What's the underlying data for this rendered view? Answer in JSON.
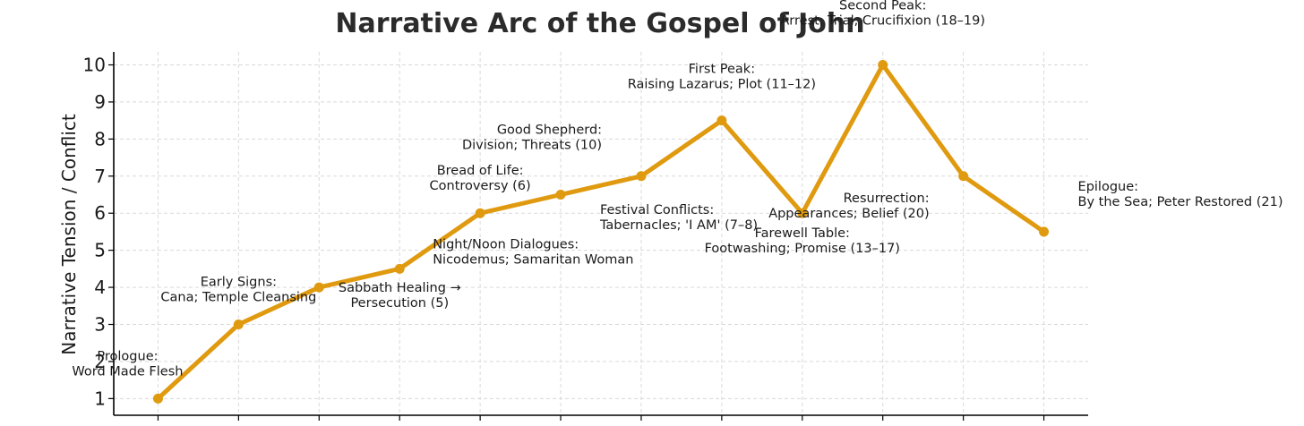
{
  "colors": {
    "line": "#E09A10",
    "grid": "#d9d9d9",
    "text": "#1a1a1a"
  },
  "chart_data": {
    "type": "line",
    "title": "Narrative Arc of the Gospel of John",
    "xlabel": "",
    "ylabel": "Narrative Tension / Conflict",
    "ylim": [
      0.55,
      10.35
    ],
    "xlim": [
      -0.55,
      11.55
    ],
    "yticks": [
      "1",
      "2",
      "3",
      "4",
      "5",
      "6",
      "7",
      "8",
      "9",
      "10"
    ],
    "grid": true,
    "x": [
      0,
      1,
      2,
      3,
      4,
      5,
      6,
      7,
      8,
      9,
      10,
      11
    ],
    "series": [
      {
        "values": [
          1,
          3,
          4,
          4.5,
          6,
          6.5,
          7,
          8.5,
          6,
          10,
          7,
          5.5
        ]
      }
    ],
    "annotations": [
      {
        "lines": [
          "Prologue:",
          "Word Made Flesh"
        ],
        "x": 0,
        "y": 1
      },
      {
        "lines": [
          "Early Signs:",
          "Cana; Temple Cleansing"
        ],
        "x": 1,
        "y": 3
      },
      {
        "lines": [
          "Sabbath Healing →",
          "Persecution (5)"
        ],
        "x": 2,
        "y": 4
      },
      {
        "lines": [
          "Night/Noon Dialogues:",
          "Nicodemus; Samaritan Woman"
        ],
        "x": 3,
        "y": 4.5
      },
      {
        "lines": [
          "Bread of Life:",
          "Controversy (6)"
        ],
        "x": 4,
        "y": 6
      },
      {
        "lines": [
          "Good Shepherd:",
          "Division; Threats (10)"
        ],
        "x": 5,
        "y": 6.5
      },
      {
        "lines": [
          "Festival Conflicts:",
          "Tabernacles; 'I AM' (7–8)"
        ],
        "x": 6,
        "y": 7
      },
      {
        "lines": [
          "First Peak:",
          "Raising Lazarus; Plot (11–12)"
        ],
        "x": 7,
        "y": 8.5
      },
      {
        "lines": [
          "Farewell Table:",
          "Footwashing; Promise (13–17)"
        ],
        "x": 8,
        "y": 6
      },
      {
        "lines": [
          "Second Peak:",
          "Arrest, Trial, Crucifixion (18–19)"
        ],
        "x": 9,
        "y": 10
      },
      {
        "lines": [
          "Resurrection:",
          "Appearances; Belief (20)"
        ],
        "x": 10,
        "y": 7
      },
      {
        "lines": [
          "Epilogue:",
          "By the Sea; Peter Restored (21)"
        ],
        "x": 11,
        "y": 5.5
      }
    ]
  }
}
